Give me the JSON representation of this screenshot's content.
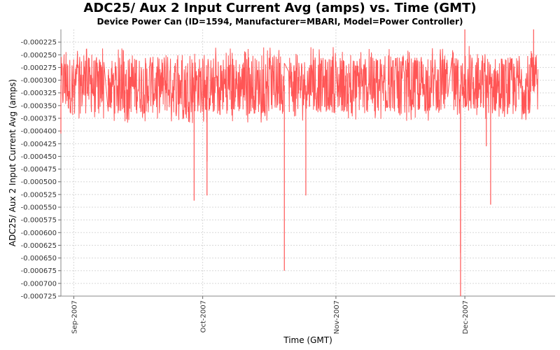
{
  "chart_data": {
    "type": "line",
    "title": "ADC25/ Aux 2 Input Current Avg (amps) vs. Time (GMT)",
    "subtitle": "Device Power Can (ID=1594, Manufacturer=MBARI, Model=Power Controller)",
    "xlabel": "Time (GMT)",
    "ylabel": "ADC25/ Aux 2 Input Current Avg (amps)",
    "xlim": [
      "2007-08-29",
      "2007-12-22"
    ],
    "ylim": [
      -0.000725,
      -0.0002
    ],
    "x_ticks": [
      "Sep-2007",
      "Oct-2007",
      "Nov-2007",
      "Dec-2007"
    ],
    "y_ticks": [
      "-0.000225",
      "-0.000250",
      "-0.000275",
      "-0.000300",
      "-0.000325",
      "-0.000350",
      "-0.000375",
      "-0.000400",
      "-0.000425",
      "-0.000450",
      "-0.000475",
      "-0.000500",
      "-0.000525",
      "-0.000550",
      "-0.000575",
      "-0.000600",
      "-0.000625",
      "-0.000650",
      "-0.000675",
      "-0.000700",
      "-0.000725"
    ],
    "grid": true,
    "legend": "none",
    "line_color": "#ff5555",
    "series": [
      {
        "segments": [
          {
            "start": "2007-08-29",
            "end": "2007-09-08",
            "mean": -0.00031,
            "range": [
              -0.000385,
              -0.000235
            ]
          },
          {
            "start": "2007-09-09",
            "end": "2007-10-20",
            "mean": -0.00031,
            "range": [
              -0.000385,
              -0.000235
            ]
          },
          {
            "start": "2007-10-21",
            "end": "2007-11-27",
            "mean": -0.00031,
            "range": [
              -0.00038,
              -0.000235
            ]
          },
          {
            "start": "2007-11-28",
            "end": "2007-12-18",
            "mean": -0.00031,
            "range": [
              -0.00038,
              -0.00023
            ]
          }
        ],
        "extremes": [
          {
            "x": "2007-08-29",
            "y": -0.000405
          },
          {
            "x": "2007-09-08",
            "y": -0.00028
          },
          {
            "x": "2007-09-09",
            "y": -0.00029
          },
          {
            "x": "2007-09-29",
            "y": -0.000537
          },
          {
            "x": "2007-10-02",
            "y": -0.000527
          },
          {
            "x": "2007-10-02",
            "y": -0.00046
          },
          {
            "x": "2007-10-20",
            "y": -0.000675
          },
          {
            "x": "2007-10-25",
            "y": -0.000527
          },
          {
            "x": "2007-11-30",
            "y": -0.00064
          },
          {
            "x": "2007-11-30",
            "y": -0.000725
          },
          {
            "x": "2007-12-07",
            "y": -0.000545
          },
          {
            "x": "2007-12-06",
            "y": -0.00043
          },
          {
            "x": "2007-12-01",
            "y": -0.0002
          },
          {
            "x": "2007-12-17",
            "y": -0.0002
          }
        ]
      }
    ]
  }
}
